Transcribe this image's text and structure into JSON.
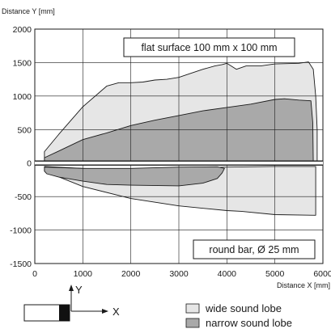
{
  "chart_data": {
    "type": "area",
    "xlabel": "Distance X [mm]",
    "ylabel": "Distance Y [mm]",
    "xlim": [
      0,
      6000
    ],
    "ylim": [
      -1500,
      2000
    ],
    "grid": true,
    "x_ticks": [
      0,
      1000,
      2000,
      3000,
      4000,
      5000,
      6000
    ],
    "y_ticks": [
      -1500,
      -1000,
      -500,
      0,
      500,
      1000,
      1500,
      2000
    ],
    "annotations": {
      "upper": "flat surface 100 mm x 100 mm",
      "lower": "round bar, Ø 25 mm"
    },
    "series": [
      {
        "name": "wide sound lobe",
        "color": "#e6e6e6",
        "region": "flat surface",
        "outline": [
          [
            200,
            170
          ],
          [
            500,
            430
          ],
          [
            1000,
            840
          ],
          [
            1500,
            1150
          ],
          [
            1750,
            1200
          ],
          [
            2000,
            1200
          ],
          [
            2250,
            1210
          ],
          [
            2500,
            1240
          ],
          [
            2750,
            1250
          ],
          [
            3000,
            1280
          ],
          [
            3250,
            1340
          ],
          [
            3500,
            1400
          ],
          [
            3750,
            1450
          ],
          [
            3900,
            1470
          ],
          [
            4000,
            1490
          ],
          [
            4200,
            1400
          ],
          [
            4400,
            1450
          ],
          [
            4700,
            1450
          ],
          [
            5000,
            1480
          ],
          [
            5500,
            1490
          ],
          [
            5700,
            1510
          ],
          [
            5800,
            1400
          ],
          [
            5850,
            1000
          ],
          [
            5880,
            500
          ],
          [
            5880,
            0
          ],
          [
            4500,
            0
          ],
          [
            3000,
            0
          ],
          [
            1000,
            0
          ],
          [
            200,
            0
          ]
        ]
      },
      {
        "name": "wide sound lobe",
        "color": "#e6e6e6",
        "region": "round bar",
        "outline": [
          [
            200,
            -50
          ],
          [
            1000,
            -80
          ],
          [
            2000,
            -100
          ],
          [
            3000,
            -80
          ],
          [
            4000,
            -60
          ],
          [
            5000,
            -50
          ],
          [
            5850,
            -50
          ],
          [
            5850,
            -200
          ],
          [
            5850,
            -780
          ],
          [
            5000,
            -770
          ],
          [
            4300,
            -720
          ],
          [
            4000,
            -710
          ],
          [
            3000,
            -640
          ],
          [
            2000,
            -530
          ],
          [
            1000,
            -350
          ],
          [
            200,
            -120
          ]
        ]
      },
      {
        "name": "narrow sound lobe",
        "color": "#a9a9a9",
        "region": "flat surface",
        "outline": [
          [
            200,
            80
          ],
          [
            500,
            180
          ],
          [
            1000,
            350
          ],
          [
            1500,
            450
          ],
          [
            2000,
            560
          ],
          [
            2500,
            640
          ],
          [
            3000,
            710
          ],
          [
            3500,
            780
          ],
          [
            4000,
            830
          ],
          [
            4500,
            880
          ],
          [
            5000,
            950
          ],
          [
            5200,
            960
          ],
          [
            5500,
            940
          ],
          [
            5750,
            930
          ],
          [
            5790,
            600
          ],
          [
            5800,
            0
          ],
          [
            200,
            0
          ]
        ]
      },
      {
        "name": "narrow sound lobe",
        "color": "#a9a9a9",
        "region": "round bar",
        "outline": [
          [
            200,
            -60
          ],
          [
            1000,
            -80
          ],
          [
            2000,
            -80
          ],
          [
            3000,
            -60
          ],
          [
            3800,
            -55
          ],
          [
            3950,
            -80
          ],
          [
            3900,
            -150
          ],
          [
            3800,
            -230
          ],
          [
            3500,
            -300
          ],
          [
            3000,
            -340
          ],
          [
            2000,
            -330
          ],
          [
            1500,
            -320
          ],
          [
            1000,
            -270
          ],
          [
            500,
            -210
          ],
          [
            250,
            -160
          ],
          [
            200,
            -120
          ]
        ]
      }
    ],
    "legend": {
      "placement": "below-right",
      "items": [
        {
          "label": "wide sound lobe",
          "color": "#e6e6e6"
        },
        {
          "label": "narrow sound lobe",
          "color": "#a9a9a9"
        }
      ]
    }
  },
  "sensor_diagram": {
    "y_label": "Y",
    "x_label": "X"
  }
}
